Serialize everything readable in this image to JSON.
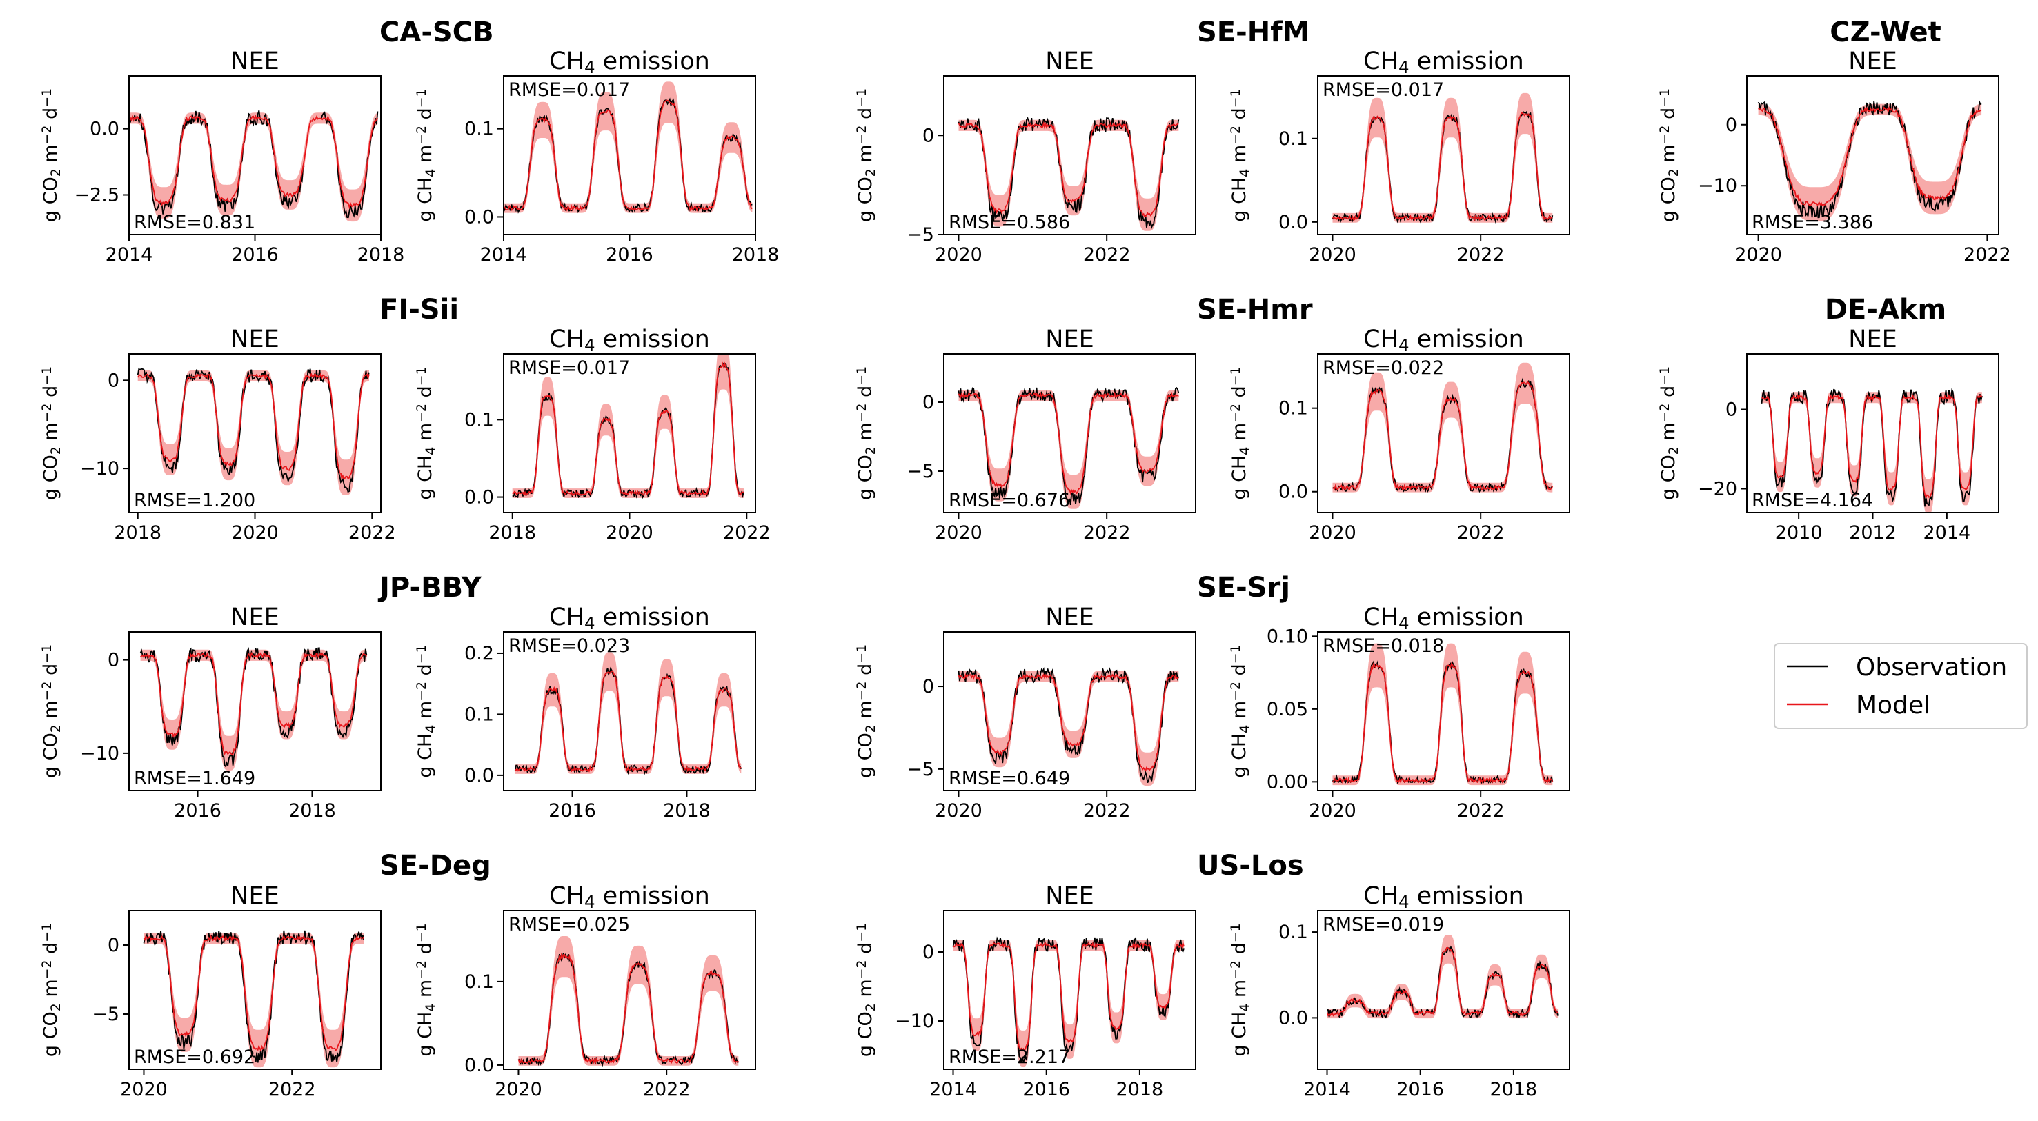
{
  "figure": {
    "legend": {
      "placement": "right",
      "entries": [
        {
          "label": "Observation",
          "color": "#000000"
        },
        {
          "label": "Model",
          "color": "#e8161b"
        }
      ]
    }
  },
  "colors": {
    "observation": "#000000",
    "model": "#e8161b",
    "uncertainty_band": "#f7aaa9"
  },
  "chart_data": [
    {
      "type": "line",
      "site": "CA-SCB",
      "panel": "NEE",
      "title": "NEE",
      "ylabel": "g CO2 m−2 d−1",
      "ylabel_parts": [
        "g CO",
        "2",
        " m",
        "−2",
        " d",
        "−1"
      ],
      "xlim": [
        2014,
        2018
      ],
      "ylim": [
        -4,
        2
      ],
      "xticks": [
        2014,
        2016,
        2018
      ],
      "yticks": [
        0,
        -2.5
      ],
      "ytick_labels": [
        "0.0",
        "−2.5"
      ],
      "rmse": "RMSE=0.831",
      "season": {
        "start": 2014.0,
        "end": 2017.95,
        "base": 0.4,
        "troughs": [
          {
            "c": 2014.55,
            "d": -2.8,
            "hw": 0.26
          },
          {
            "c": 2015.55,
            "d": -2.7,
            "hw": 0.26
          },
          {
            "c": 2016.55,
            "d": -2.5,
            "hw": 0.26
          },
          {
            "c": 2017.55,
            "d": -2.9,
            "hw": 0.26
          }
        ]
      },
      "obs_gap": [
        2016.8,
        2017.05
      ]
    },
    {
      "type": "line",
      "site": "CA-SCB",
      "panel": "CH4",
      "title": "CH4 emission",
      "title_parts": [
        "CH",
        "4",
        " emission"
      ],
      "ylabel": "g CH4 m−2 d−1",
      "ylabel_parts": [
        "g CH",
        "4",
        " m",
        "−2",
        " d",
        "−1"
      ],
      "xlim": [
        2014,
        2018
      ],
      "ylim": [
        -0.02,
        0.16
      ],
      "xticks": [
        2014,
        2016,
        2018
      ],
      "yticks": [
        0.0,
        0.1
      ],
      "ytick_labels": [
        "0.0",
        "0.1"
      ],
      "rmse": "RMSE=0.017",
      "season": {
        "start": 2014.0,
        "end": 2017.95,
        "base": 0.01,
        "peaks": [
          {
            "c": 2014.62,
            "h": 0.11,
            "hw": 0.22
          },
          {
            "c": 2015.62,
            "h": 0.12,
            "hw": 0.22
          },
          {
            "c": 2016.62,
            "h": 0.13,
            "hw": 0.22
          },
          {
            "c": 2017.62,
            "h": 0.09,
            "hw": 0.22
          }
        ]
      }
    },
    {
      "type": "line",
      "site": "SE-HfM",
      "panel": "NEE",
      "title": "NEE",
      "ylabel": "g CO2 m−2 d−1",
      "ylabel_parts": [
        "g CO",
        "2",
        " m",
        "−2",
        " d",
        "−1"
      ],
      "xlim": [
        2019.8,
        2023.2
      ],
      "ylim": [
        -5,
        3
      ],
      "xticks": [
        2020,
        2022
      ],
      "yticks": [
        0,
        -5
      ],
      "ytick_labels": [
        "0",
        "−5"
      ],
      "rmse": "RMSE=0.586",
      "season": {
        "start": 2020.0,
        "end": 2022.97,
        "base": 0.5,
        "troughs": [
          {
            "c": 2020.55,
            "d": -3.8,
            "hw": 0.2
          },
          {
            "c": 2021.55,
            "d": -3.3,
            "hw": 0.2
          },
          {
            "c": 2022.55,
            "d": -4.0,
            "hw": 0.2
          }
        ]
      }
    },
    {
      "type": "line",
      "site": "SE-HfM",
      "panel": "CH4",
      "title": "CH4 emission",
      "title_parts": [
        "CH",
        "4",
        " emission"
      ],
      "ylabel": "g CH4 m−2 d−1",
      "ylabel_parts": [
        "g CH",
        "4",
        " m",
        "−2",
        " d",
        "−1"
      ],
      "xlim": [
        2019.8,
        2023.2
      ],
      "ylim": [
        -0.015,
        0.175
      ],
      "xticks": [
        2020,
        2022
      ],
      "yticks": [
        0.0,
        0.1
      ],
      "ytick_labels": [
        "0.0",
        "0.1"
      ],
      "rmse": "RMSE=0.017",
      "season": {
        "start": 2020.0,
        "end": 2022.97,
        "base": 0.005,
        "peaks": [
          {
            "c": 2020.6,
            "h": 0.125,
            "hw": 0.17
          },
          {
            "c": 2021.6,
            "h": 0.125,
            "hw": 0.17
          },
          {
            "c": 2022.6,
            "h": 0.13,
            "hw": 0.17
          }
        ]
      }
    },
    {
      "type": "line",
      "site": "CZ-Wet",
      "panel": "NEE",
      "title": "NEE",
      "ylabel": "g CO2 m−2 d−1",
      "ylabel_parts": [
        "g CO",
        "2",
        " m",
        "−2",
        " d",
        "−1"
      ],
      "xlim": [
        2019.9,
        2022.1
      ],
      "ylim": [
        -18,
        8
      ],
      "xticks": [
        2020,
        2022
      ],
      "yticks": [
        0,
        -10
      ],
      "ytick_labels": [
        "0",
        "−10"
      ],
      "rmse": "RMSE=3.386",
      "season": {
        "start": 2020.0,
        "end": 2021.95,
        "base": 2.5,
        "troughs": [
          {
            "c": 2020.5,
            "d": -13,
            "hw": 0.3
          },
          {
            "c": 2021.55,
            "d": -12,
            "hw": 0.25
          }
        ]
      }
    },
    {
      "type": "line",
      "site": "FI-Sii",
      "panel": "NEE",
      "title": "NEE",
      "ylabel": "g CO2 m−2 d−1",
      "ylabel_parts": [
        "g CO",
        "2",
        " m",
        "−2",
        " d",
        "−1"
      ],
      "xlim": [
        2017.85,
        2022.15
      ],
      "ylim": [
        -15,
        3
      ],
      "xticks": [
        2018,
        2020,
        2022
      ],
      "yticks": [
        0,
        -10
      ],
      "ytick_labels": [
        "0",
        "−10"
      ],
      "rmse": "RMSE=1.200",
      "season": {
        "start": 2018.0,
        "end": 2021.95,
        "base": 0.5,
        "troughs": [
          {
            "c": 2018.55,
            "d": -9,
            "hw": 0.22
          },
          {
            "c": 2019.55,
            "d": -9.5,
            "hw": 0.22
          },
          {
            "c": 2020.55,
            "d": -10,
            "hw": 0.22
          },
          {
            "c": 2021.55,
            "d": -11,
            "hw": 0.22
          }
        ]
      }
    },
    {
      "type": "line",
      "site": "FI-Sii",
      "panel": "CH4",
      "title": "CH4 emission",
      "title_parts": [
        "CH",
        "4",
        " emission"
      ],
      "ylabel": "g CH4 m−2 d−1",
      "ylabel_parts": [
        "g CH",
        "4",
        " m",
        "−2",
        " d",
        "−1"
      ],
      "xlim": [
        2017.85,
        2022.15
      ],
      "ylim": [
        -0.02,
        0.185
      ],
      "xticks": [
        2018,
        2020,
        2022
      ],
      "yticks": [
        0.0,
        0.1
      ],
      "ytick_labels": [
        "0.0",
        "0.1"
      ],
      "rmse": "RMSE=0.017",
      "season": {
        "start": 2018.0,
        "end": 2021.95,
        "base": 0.005,
        "peaks": [
          {
            "c": 2018.6,
            "h": 0.13,
            "hw": 0.18
          },
          {
            "c": 2019.6,
            "h": 0.1,
            "hw": 0.18
          },
          {
            "c": 2020.6,
            "h": 0.11,
            "hw": 0.18
          },
          {
            "c": 2021.6,
            "h": 0.17,
            "hw": 0.18
          }
        ]
      }
    },
    {
      "type": "line",
      "site": "SE-Hmr",
      "panel": "NEE",
      "title": "NEE",
      "ylabel": "g CO2 m−2 d−1",
      "ylabel_parts": [
        "g CO",
        "2",
        " m",
        "−2",
        " d",
        "−1"
      ],
      "xlim": [
        2019.8,
        2023.2
      ],
      "ylim": [
        -8,
        3.5
      ],
      "xticks": [
        2020,
        2022
      ],
      "yticks": [
        0,
        -5
      ],
      "ytick_labels": [
        "0",
        "−5"
      ],
      "rmse": "RMSE=0.676",
      "season": {
        "start": 2020.0,
        "end": 2022.97,
        "base": 0.5,
        "troughs": [
          {
            "c": 2020.55,
            "d": -6,
            "hw": 0.2
          },
          {
            "c": 2021.55,
            "d": -6.5,
            "hw": 0.2
          },
          {
            "c": 2022.55,
            "d": -5,
            "hw": 0.2
          }
        ]
      }
    },
    {
      "type": "line",
      "site": "SE-Hmr",
      "panel": "CH4",
      "title": "CH4 emission",
      "title_parts": [
        "CH",
        "4",
        " emission"
      ],
      "ylabel": "g CH4 m−2 d−1",
      "ylabel_parts": [
        "g CH",
        "4",
        " m",
        "−2",
        " d",
        "−1"
      ],
      "xlim": [
        2019.8,
        2023.2
      ],
      "ylim": [
        -0.025,
        0.165
      ],
      "xticks": [
        2020,
        2022
      ],
      "yticks": [
        0.0,
        0.1
      ],
      "ytick_labels": [
        "0.0",
        "0.1"
      ],
      "rmse": "RMSE=0.022",
      "season": {
        "start": 2020.0,
        "end": 2022.97,
        "base": 0.005,
        "peaks": [
          {
            "c": 2020.6,
            "h": 0.12,
            "hw": 0.18
          },
          {
            "c": 2021.6,
            "h": 0.11,
            "hw": 0.18
          },
          {
            "c": 2022.6,
            "h": 0.13,
            "hw": 0.2
          }
        ]
      }
    },
    {
      "type": "line",
      "site": "DE-Akm",
      "panel": "NEE",
      "title": "NEE",
      "ylabel": "g CO2 m−2 d−1",
      "ylabel_parts": [
        "g CO",
        "2",
        " m",
        "−2",
        " d",
        "−1"
      ],
      "xlim": [
        2008.6,
        2015.4
      ],
      "ylim": [
        -26,
        14
      ],
      "xticks": [
        2010,
        2012,
        2014
      ],
      "yticks": [
        0,
        -20
      ],
      "ytick_labels": [
        "0",
        "−20"
      ],
      "rmse": "RMSE=4.164",
      "season": {
        "start": 2009.0,
        "end": 2014.95,
        "base": 3,
        "troughs": [
          {
            "c": 2009.5,
            "d": -17,
            "hw": 0.22
          },
          {
            "c": 2010.5,
            "d": -16,
            "hw": 0.22
          },
          {
            "c": 2011.5,
            "d": -18,
            "hw": 0.22
          },
          {
            "c": 2012.5,
            "d": -20,
            "hw": 0.22
          },
          {
            "c": 2013.5,
            "d": -22,
            "hw": 0.22
          },
          {
            "c": 2014.5,
            "d": -20,
            "hw": 0.22
          }
        ]
      }
    },
    {
      "type": "line",
      "site": "JP-BBY",
      "panel": "NEE",
      "title": "NEE",
      "ylabel": "g CO2 m−2 d−1",
      "ylabel_parts": [
        "g CO",
        "2",
        " m",
        "−2",
        " d",
        "−1"
      ],
      "xlim": [
        2014.8,
        2019.2
      ],
      "ylim": [
        -14,
        3
      ],
      "xticks": [
        2016,
        2018
      ],
      "yticks": [
        0,
        -10
      ],
      "ytick_labels": [
        "0",
        "−10"
      ],
      "rmse": "RMSE=1.649",
      "season": {
        "start": 2015.0,
        "end": 2018.95,
        "base": 0.5,
        "troughs": [
          {
            "c": 2015.55,
            "d": -8,
            "hw": 0.22
          },
          {
            "c": 2016.55,
            "d": -10,
            "hw": 0.22
          },
          {
            "c": 2017.55,
            "d": -7,
            "hw": 0.22
          },
          {
            "c": 2018.55,
            "d": -7,
            "hw": 0.22
          }
        ]
      }
    },
    {
      "type": "line",
      "site": "JP-BBY",
      "panel": "CH4",
      "title": "CH4 emission",
      "title_parts": [
        "CH",
        "4",
        " emission"
      ],
      "ylabel": "g CH4 m−2 d−1",
      "ylabel_parts": [
        "g CH",
        "4",
        " m",
        "−2",
        " d",
        "−1"
      ],
      "xlim": [
        2014.8,
        2019.2
      ],
      "ylim": [
        -0.025,
        0.235
      ],
      "xticks": [
        2016,
        2018
      ],
      "yticks": [
        0.0,
        0.1,
        0.2
      ],
      "ytick_labels": [
        "0.0",
        "0.1",
        "0.2"
      ],
      "rmse": "RMSE=0.023",
      "season": {
        "start": 2015.0,
        "end": 2018.95,
        "base": 0.01,
        "peaks": [
          {
            "c": 2015.65,
            "h": 0.14,
            "hw": 0.2
          },
          {
            "c": 2016.65,
            "h": 0.17,
            "hw": 0.2
          },
          {
            "c": 2017.65,
            "h": 0.16,
            "hw": 0.2
          },
          {
            "c": 2018.65,
            "h": 0.14,
            "hw": 0.2
          }
        ]
      }
    },
    {
      "type": "line",
      "site": "SE-Srj",
      "panel": "NEE",
      "title": "NEE",
      "ylabel": "g CO2 m−2 d−1",
      "ylabel_parts": [
        "g CO",
        "2",
        " m",
        "−2",
        " d",
        "−1"
      ],
      "xlim": [
        2019.8,
        2023.2
      ],
      "ylim": [
        -6.3,
        3.3
      ],
      "xticks": [
        2020,
        2022
      ],
      "yticks": [
        0,
        -5
      ],
      "ytick_labels": [
        "0",
        "−5"
      ],
      "rmse": "RMSE=0.649",
      "season": {
        "start": 2020.0,
        "end": 2022.97,
        "base": 0.6,
        "troughs": [
          {
            "c": 2020.55,
            "d": -4,
            "hw": 0.2
          },
          {
            "c": 2021.55,
            "d": -3.5,
            "hw": 0.2
          },
          {
            "c": 2022.55,
            "d": -5,
            "hw": 0.2
          }
        ]
      }
    },
    {
      "type": "line",
      "site": "SE-Srj",
      "panel": "CH4",
      "title": "CH4 emission",
      "title_parts": [
        "CH",
        "4",
        " emission"
      ],
      "ylabel": "g CH4 m−2 d−1",
      "ylabel_parts": [
        "g CH",
        "4",
        " m",
        "−2",
        " d",
        "−1"
      ],
      "xlim": [
        2019.8,
        2023.2
      ],
      "ylim": [
        -0.006,
        0.103
      ],
      "xticks": [
        2020,
        2022
      ],
      "yticks": [
        0.0,
        0.05,
        0.1
      ],
      "ytick_labels": [
        "0.00",
        "0.05",
        "0.10"
      ],
      "rmse": "RMSE=0.018",
      "season": {
        "start": 2020.0,
        "end": 2022.97,
        "base": 0.001,
        "peaks": [
          {
            "c": 2020.6,
            "h": 0.08,
            "hw": 0.18
          },
          {
            "c": 2021.6,
            "h": 0.08,
            "hw": 0.16
          },
          {
            "c": 2022.6,
            "h": 0.075,
            "hw": 0.18
          }
        ]
      }
    },
    {
      "type": "line",
      "site": "SE-Deg",
      "panel": "NEE",
      "title": "NEE",
      "ylabel": "g CO2 m−2 d−1",
      "ylabel_parts": [
        "g CO",
        "2",
        " m",
        "−2",
        " d",
        "−1"
      ],
      "xlim": [
        2019.8,
        2023.2
      ],
      "ylim": [
        -9,
        2.5
      ],
      "xticks": [
        2020,
        2022
      ],
      "yticks": [
        0,
        -5
      ],
      "ytick_labels": [
        "0",
        "−5"
      ],
      "rmse": "RMSE=0.692",
      "season": {
        "start": 2020.0,
        "end": 2022.97,
        "base": 0.5,
        "troughs": [
          {
            "c": 2020.55,
            "d": -6.5,
            "hw": 0.2
          },
          {
            "c": 2021.55,
            "d": -7.5,
            "hw": 0.2
          },
          {
            "c": 2022.55,
            "d": -7.5,
            "hw": 0.2
          }
        ]
      }
    },
    {
      "type": "line",
      "site": "SE-Deg",
      "panel": "CH4",
      "title": "CH4 emission",
      "title_parts": [
        "CH",
        "4",
        " emission"
      ],
      "ylabel": "g CH4 m−2 d−1",
      "ylabel_parts": [
        "g CH",
        "4",
        " m",
        "−2",
        " d",
        "−1"
      ],
      "xlim": [
        2019.8,
        2023.2
      ],
      "ylim": [
        -0.005,
        0.185
      ],
      "xticks": [
        2020,
        2022
      ],
      "yticks": [
        0.0,
        0.1
      ],
      "ytick_labels": [
        "0.0",
        "0.1"
      ],
      "rmse": "RMSE=0.025",
      "season": {
        "start": 2020.0,
        "end": 2022.97,
        "base": 0.005,
        "peaks": [
          {
            "c": 2020.62,
            "h": 0.13,
            "hw": 0.2
          },
          {
            "c": 2021.62,
            "h": 0.12,
            "hw": 0.2
          },
          {
            "c": 2022.62,
            "h": 0.11,
            "hw": 0.2
          }
        ]
      }
    },
    {
      "type": "line",
      "site": "US-Los",
      "panel": "NEE",
      "title": "NEE",
      "ylabel": "g CO2 m−2 d−1",
      "ylabel_parts": [
        "g CO",
        "2",
        " m",
        "−2",
        " d",
        "−1"
      ],
      "xlim": [
        2013.8,
        2019.2
      ],
      "ylim": [
        -17,
        6
      ],
      "xticks": [
        2014,
        2016,
        2018
      ],
      "yticks": [
        0,
        -10
      ],
      "ytick_labels": [
        "0",
        "−10"
      ],
      "rmse": "RMSE=2.217",
      "season": {
        "start": 2014.0,
        "end": 2018.95,
        "base": 1,
        "troughs": [
          {
            "c": 2014.5,
            "d": -12,
            "hw": 0.2
          },
          {
            "c": 2015.5,
            "d": -14,
            "hw": 0.2
          },
          {
            "c": 2016.5,
            "d": -13,
            "hw": 0.2
          },
          {
            "c": 2017.5,
            "d": -11,
            "hw": 0.2
          },
          {
            "c": 2018.5,
            "d": -8,
            "hw": 0.2
          }
        ]
      }
    },
    {
      "type": "line",
      "site": "US-Los",
      "panel": "CH4",
      "title": "CH4 emission",
      "title_parts": [
        "CH",
        "4",
        " emission"
      ],
      "ylabel": "g CH4 m−2 d−1",
      "ylabel_parts": [
        "g CH",
        "4",
        " m",
        "−2",
        " d",
        "−1"
      ],
      "xlim": [
        2013.8,
        2019.2
      ],
      "ylim": [
        -0.06,
        0.125
      ],
      "xticks": [
        2014,
        2016,
        2018
      ],
      "yticks": [
        0.0,
        0.1
      ],
      "ytick_labels": [
        "0.0",
        "0.1"
      ],
      "rmse": "RMSE=0.019",
      "season": {
        "start": 2014.0,
        "end": 2018.95,
        "base": 0.005,
        "peaks": [
          {
            "c": 2014.6,
            "h": 0.02,
            "hw": 0.22
          },
          {
            "c": 2015.6,
            "h": 0.03,
            "hw": 0.22
          },
          {
            "c": 2016.6,
            "h": 0.08,
            "hw": 0.22
          },
          {
            "c": 2017.6,
            "h": 0.05,
            "hw": 0.22
          },
          {
            "c": 2018.6,
            "h": 0.06,
            "hw": 0.22
          }
        ]
      }
    }
  ]
}
